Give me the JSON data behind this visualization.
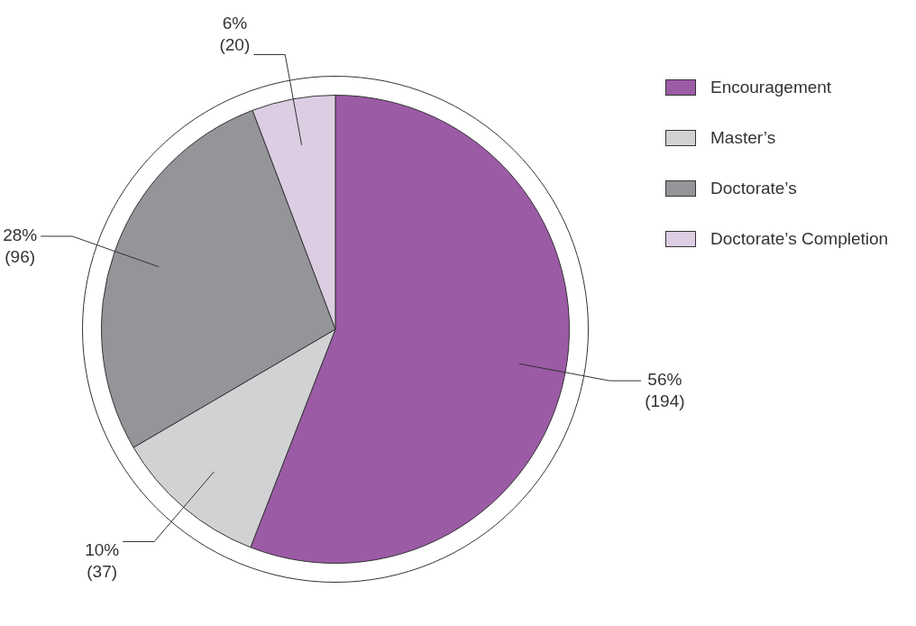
{
  "chart_data": {
    "type": "pie",
    "categories": [
      "Encouragement",
      "Master’s",
      "Doctorate’s",
      "Doctorate’s Completion"
    ],
    "values": [
      194,
      37,
      96,
      20
    ],
    "colors": [
      "#9b5ba5",
      "#d1d2d4",
      "#939598",
      "#dccde3"
    ],
    "value_labels": [
      "56%\n(194)",
      "10%\n(37)",
      "28%\n(96)",
      "6%\n(20)"
    ],
    "legend": "top right"
  }
}
